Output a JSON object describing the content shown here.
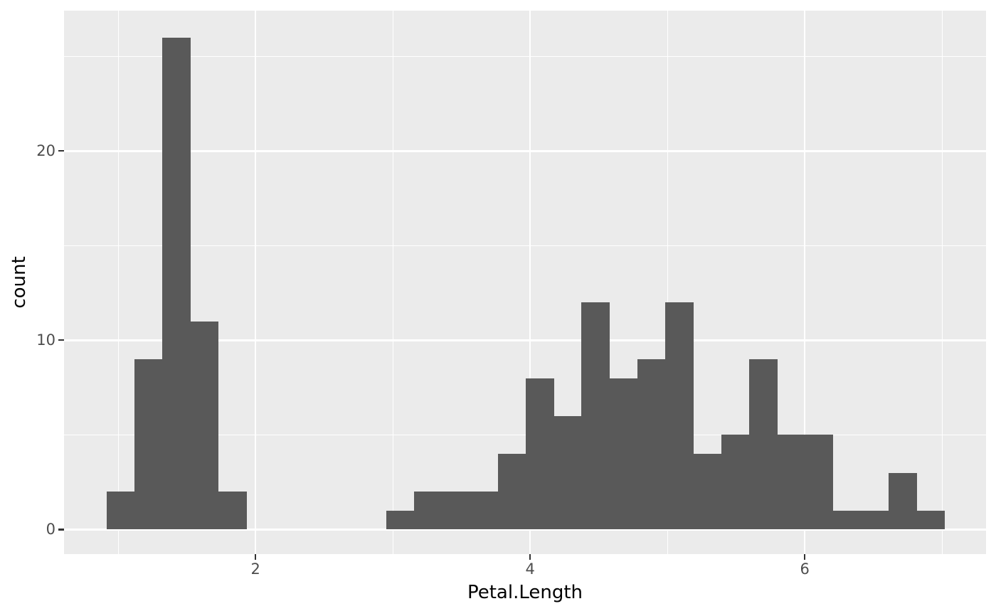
{
  "figure": {
    "x_axis_title": "Petal.Length",
    "y_axis_title": "count"
  },
  "chart_data": {
    "type": "bar",
    "subtype": "histogram",
    "title": "",
    "xlabel": "Petal.Length",
    "ylabel": "count",
    "bin_start": 0.9155,
    "binwidth": 0.20345,
    "counts": [
      2,
      9,
      26,
      11,
      2,
      0,
      0,
      0,
      0,
      0,
      1,
      2,
      2,
      2,
      4,
      8,
      6,
      12,
      8,
      9,
      12,
      4,
      5,
      9,
      5,
      5,
      1,
      1,
      3,
      1
    ],
    "x_tick_values": [
      2,
      4,
      6
    ],
    "x_tick_labels": [
      "2",
      "4",
      "6"
    ],
    "y_tick_values": [
      0,
      10,
      20
    ],
    "y_tick_labels": [
      "0",
      "10",
      "20"
    ],
    "x_minor_gridlines": [
      1,
      3,
      5,
      7
    ],
    "y_minor_gridlines": [
      5,
      15,
      25
    ],
    "xlim": [
      0.605,
      7.32
    ],
    "ylim": [
      -1.3,
      27.42
    ],
    "grid": true,
    "legend": false,
    "colors": {
      "bar_fill": "#595959",
      "panel_background": "#EBEBEB",
      "gridline": "#FFFFFF",
      "tick_label": "#4D4D4D",
      "axis_title": "#000000",
      "tick_mark": "#333333",
      "figure_background": "#FFFFFF"
    }
  }
}
